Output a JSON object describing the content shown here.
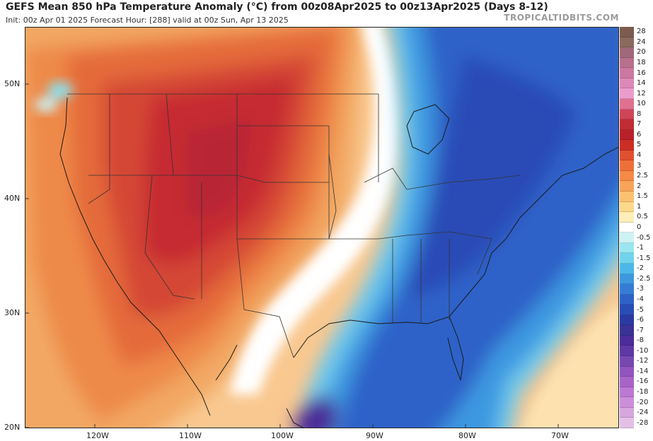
{
  "header": {
    "title": "GEFS Mean 850 hPa Temperature Anomaly (°C) from 00z08Apr2025 to 00z13Apr2025 (Days 8-12)",
    "subtitle": "Init: 00z Apr 01 2025   Forecast Hour: [288]   valid at 00z Sun, Apr 13 2025",
    "source": "TROPICALTIDBITS.COM"
  },
  "map": {
    "region": "Continental United States",
    "lat_labels": [
      "50N",
      "40N",
      "30N",
      "20N"
    ],
    "lon_labels": [
      "120W",
      "110W",
      "100W",
      "90W",
      "80W",
      "70W"
    ]
  },
  "legend": {
    "levels": [
      "28",
      "24",
      "20",
      "18",
      "16",
      "14",
      "12",
      "10",
      "8",
      "7",
      "6",
      "5",
      "4",
      "3",
      "2.5",
      "2",
      "1.5",
      "1",
      "0.5",
      "0",
      "-0.5",
      "-1",
      "-1.5",
      "-2",
      "-2.5",
      "-3",
      "-4",
      "-5",
      "-6",
      "-7",
      "-8",
      "-10",
      "-12",
      "-14",
      "-16",
      "-18",
      "-20",
      "-24",
      "-28"
    ],
    "colors": [
      "#7b5c4e",
      "#8a6a5c",
      "#a0687a",
      "#b8708e",
      "#cc78a2",
      "#dd88b8",
      "#ec9ccc",
      "#e07090",
      "#d04458",
      "#c02c34",
      "#b8202a",
      "#cc2e26",
      "#e0502e",
      "#ee7038",
      "#f48a46",
      "#f8a458",
      "#fbc070",
      "#fcd88a",
      "#fdeeb8",
      "#ffffff",
      "#ccf2f6",
      "#9ae6f0",
      "#70d4ec",
      "#4cb8e8",
      "#3e98e0",
      "#367cd6",
      "#2e62c8",
      "#2a4cb6",
      "#2a3aa2",
      "#3a3296",
      "#4c2c98",
      "#6038a6",
      "#7848b2",
      "#9254be",
      "#a864c8",
      "#bc78d2",
      "#cc8ed8",
      "#d8a6de",
      "#e4c0e6"
    ]
  }
}
